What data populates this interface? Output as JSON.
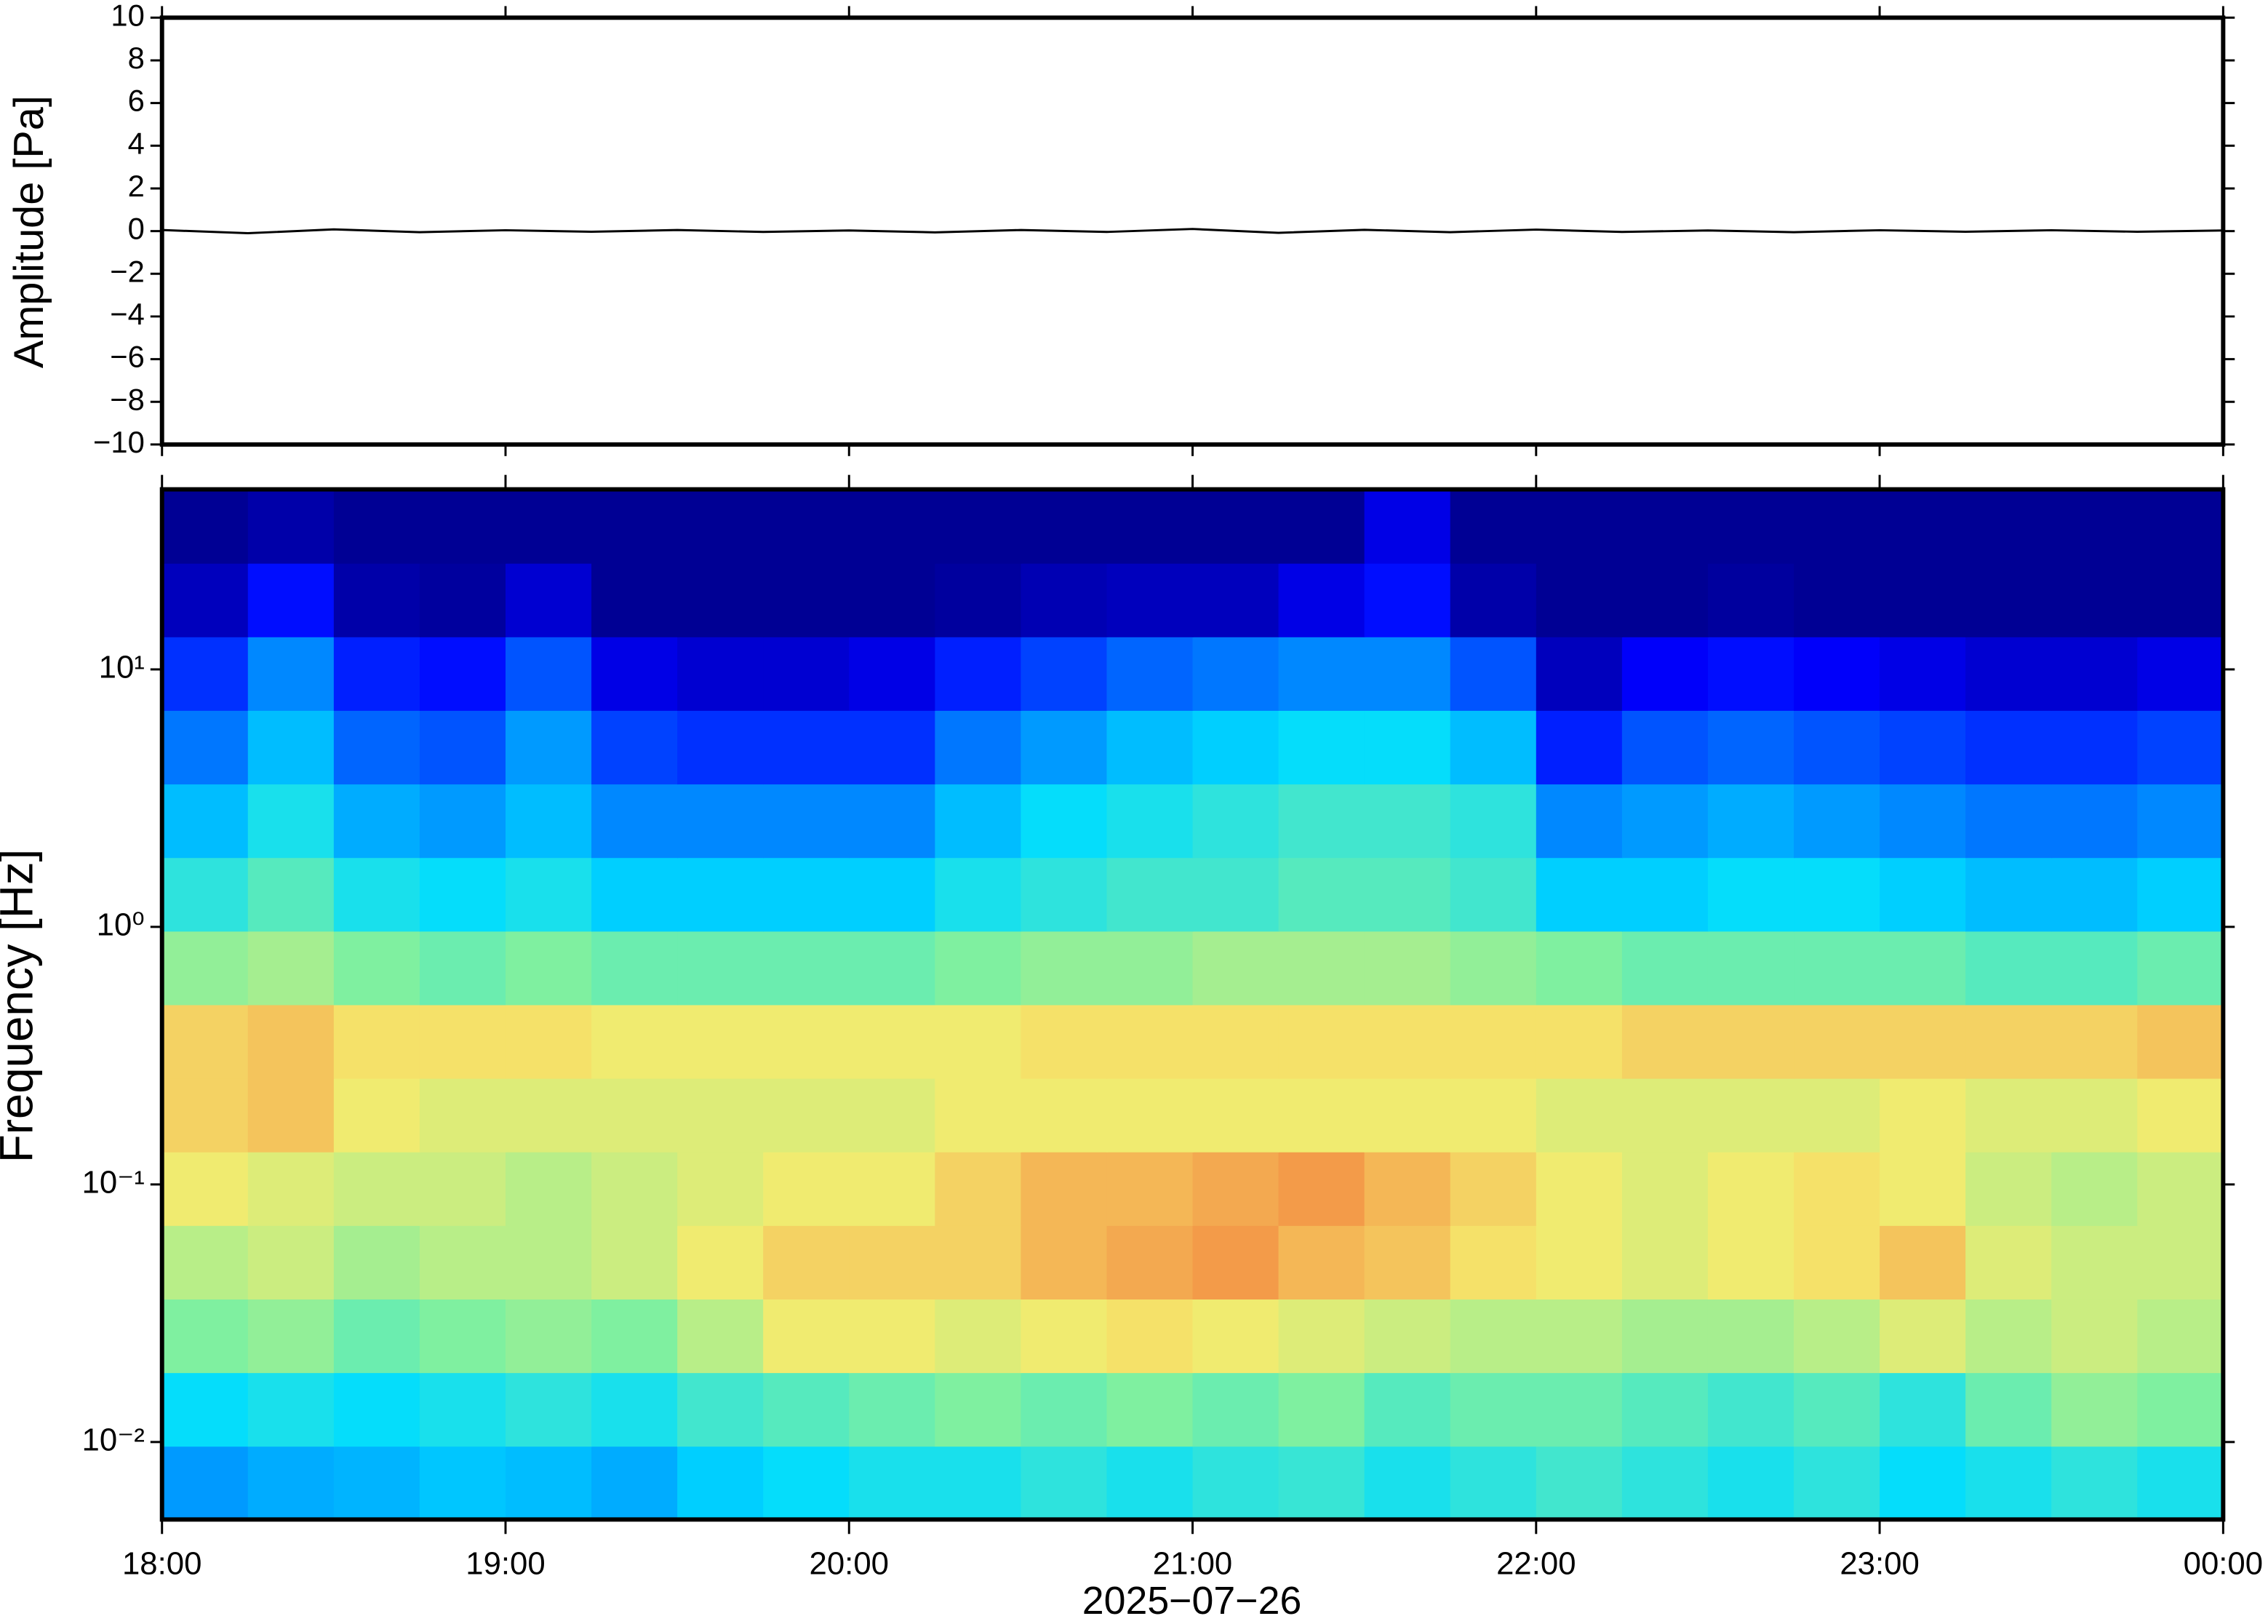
{
  "chart_data": [
    {
      "type": "line",
      "ylabel": "Amplitude [Pa]",
      "x": [
        18,
        18.25,
        18.5,
        18.75,
        19,
        19.25,
        19.5,
        19.75,
        20,
        20.25,
        20.5,
        20.75,
        21,
        21.25,
        21.5,
        21.75,
        22,
        22.25,
        22.5,
        22.75,
        23,
        23.25,
        23.5,
        23.75,
        24
      ],
      "values": [
        0.05,
        -0.1,
        0.08,
        -0.05,
        0.04,
        -0.03,
        0.05,
        -0.04,
        0.03,
        -0.06,
        0.05,
        -0.04,
        0.1,
        -0.08,
        0.06,
        -0.05,
        0.07,
        -0.04,
        0.03,
        -0.05,
        0.04,
        -0.03,
        0.04,
        -0.03,
        0.03
      ],
      "color": "#000000",
      "xlim": [
        18,
        24
      ],
      "ylim": [
        -10,
        10
      ],
      "yticks": [
        {
          "value": -10,
          "label": "−10"
        },
        {
          "value": -8,
          "label": "−8"
        },
        {
          "value": -6,
          "label": "−6"
        },
        {
          "value": -4,
          "label": "−4"
        },
        {
          "value": -2,
          "label": "−2"
        },
        0,
        2,
        4,
        6,
        8,
        10
      ]
    },
    {
      "type": "heatmap",
      "ylabel": "Frequency [Hz]",
      "xlabel": "2025−07−26",
      "xlim": [
        18,
        24
      ],
      "xticks": [
        {
          "value": 18,
          "label": "18:00"
        },
        {
          "value": 19,
          "label": "19:00"
        },
        {
          "value": 20,
          "label": "20:00"
        },
        {
          "value": 21,
          "label": "21:00"
        },
        {
          "value": 22,
          "label": "22:00"
        },
        {
          "value": 23,
          "label": "23:00"
        },
        {
          "value": 24,
          "label": "00:00"
        }
      ],
      "ylim": [
        0.005,
        50
      ],
      "log_y": true,
      "yticks": [
        {
          "value": 0.01,
          "label": "10⁻²"
        },
        {
          "value": 0.1,
          "label": "10⁻¹"
        },
        {
          "value": 1,
          "label": "10⁰"
        },
        {
          "value": 10,
          "label": "10¹"
        }
      ],
      "z": [
        [
          0.3,
          0.32,
          0.33,
          0.35,
          0.34,
          0.32,
          0.36,
          0.38,
          0.4,
          0.4,
          0.42,
          0.4,
          0.42,
          0.43,
          0.4,
          0.42,
          0.44,
          0.42,
          0.4,
          0.42,
          0.38,
          0.4,
          0.42,
          0.4
        ],
        [
          0.38,
          0.4,
          0.38,
          0.4,
          0.42,
          0.4,
          0.44,
          0.46,
          0.48,
          0.5,
          0.48,
          0.5,
          0.48,
          0.5,
          0.46,
          0.48,
          0.48,
          0.46,
          0.44,
          0.46,
          0.42,
          0.48,
          0.52,
          0.5
        ],
        [
          0.5,
          0.52,
          0.48,
          0.5,
          0.52,
          0.5,
          0.56,
          0.62,
          0.62,
          0.6,
          0.62,
          0.64,
          0.62,
          0.6,
          0.58,
          0.56,
          0.56,
          0.54,
          0.54,
          0.56,
          0.6,
          0.56,
          0.58,
          0.56
        ],
        [
          0.56,
          0.58,
          0.54,
          0.56,
          0.56,
          0.58,
          0.62,
          0.66,
          0.66,
          0.66,
          0.7,
          0.72,
          0.74,
          0.7,
          0.68,
          0.64,
          0.62,
          0.6,
          0.62,
          0.64,
          0.68,
          0.6,
          0.58,
          0.58
        ],
        [
          0.62,
          0.6,
          0.58,
          0.58,
          0.56,
          0.58,
          0.6,
          0.62,
          0.62,
          0.66,
          0.7,
          0.7,
          0.72,
          0.74,
          0.7,
          0.66,
          0.62,
          0.6,
          0.62,
          0.64,
          0.62,
          0.58,
          0.56,
          0.58
        ],
        [
          0.66,
          0.68,
          0.62,
          0.6,
          0.6,
          0.6,
          0.6,
          0.6,
          0.6,
          0.62,
          0.62,
          0.62,
          0.62,
          0.62,
          0.62,
          0.62,
          0.6,
          0.6,
          0.6,
          0.6,
          0.62,
          0.6,
          0.6,
          0.62
        ],
        [
          0.66,
          0.68,
          0.64,
          0.64,
          0.64,
          0.62,
          0.62,
          0.62,
          0.62,
          0.62,
          0.64,
          0.64,
          0.64,
          0.64,
          0.64,
          0.64,
          0.64,
          0.66,
          0.66,
          0.66,
          0.66,
          0.66,
          0.66,
          0.68
        ],
        [
          0.52,
          0.54,
          0.5,
          0.48,
          0.5,
          0.48,
          0.48,
          0.48,
          0.48,
          0.5,
          0.52,
          0.52,
          0.54,
          0.54,
          0.54,
          0.52,
          0.5,
          0.48,
          0.48,
          0.48,
          0.48,
          0.46,
          0.46,
          0.48
        ],
        [
          0.42,
          0.46,
          0.4,
          0.38,
          0.4,
          0.36,
          0.36,
          0.36,
          0.36,
          0.4,
          0.42,
          0.44,
          0.44,
          0.46,
          0.46,
          0.44,
          0.36,
          0.36,
          0.38,
          0.38,
          0.36,
          0.34,
          0.34,
          0.36
        ],
        [
          0.34,
          0.4,
          0.32,
          0.3,
          0.34,
          0.28,
          0.28,
          0.28,
          0.28,
          0.34,
          0.38,
          0.4,
          0.42,
          0.44,
          0.44,
          0.42,
          0.28,
          0.3,
          0.32,
          0.3,
          0.28,
          0.26,
          0.26,
          0.28
        ],
        [
          0.26,
          0.34,
          0.24,
          0.22,
          0.3,
          0.2,
          0.18,
          0.18,
          0.18,
          0.26,
          0.3,
          0.34,
          0.36,
          0.38,
          0.38,
          0.34,
          0.16,
          0.22,
          0.24,
          0.22,
          0.2,
          0.18,
          0.18,
          0.2
        ],
        [
          0.18,
          0.28,
          0.16,
          0.14,
          0.22,
          0.1,
          0.08,
          0.08,
          0.1,
          0.16,
          0.2,
          0.24,
          0.26,
          0.28,
          0.28,
          0.22,
          0.06,
          0.12,
          0.14,
          0.12,
          0.1,
          0.08,
          0.08,
          0.1
        ],
        [
          0.06,
          0.14,
          0.04,
          0.03,
          0.08,
          0.02,
          0.02,
          0.02,
          0.02,
          0.03,
          0.05,
          0.06,
          0.06,
          0.1,
          0.14,
          0.04,
          0.02,
          0.02,
          0.03,
          0.02,
          0.02,
          0.02,
          0.02,
          0.02
        ],
        [
          0.02,
          0.04,
          0.02,
          0.02,
          0.02,
          0.02,
          0.02,
          0.02,
          0.02,
          0.02,
          0.02,
          0.02,
          0.02,
          0.02,
          0.1,
          0.02,
          0.02,
          0.02,
          0.02,
          0.02,
          0.02,
          0.02,
          0.02,
          0.02
        ]
      ]
    }
  ]
}
